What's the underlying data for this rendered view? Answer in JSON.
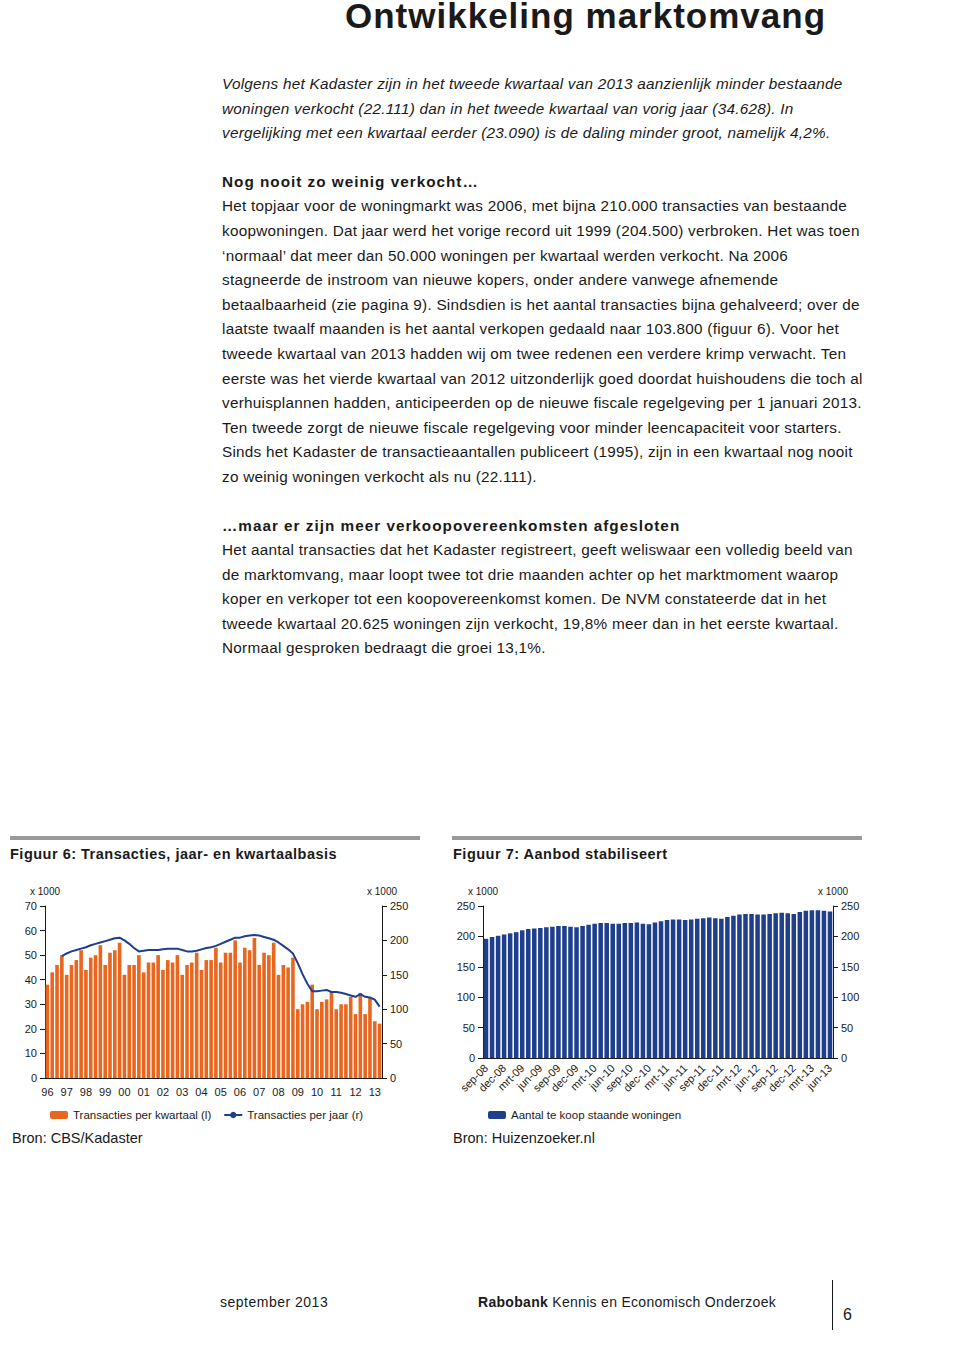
{
  "document": {
    "header": "Ontwikkeling marktomvang",
    "intro": "Volgens het Kadaster zijn in het tweede kwartaal van 2013 aanzienlijk minder bestaande woningen verkocht (22.111) dan in het tweede kwartaal van vorig jaar (34.628). In vergelijking met een kwartaal eerder (23.090) is de daling minder groot, namelijk 4,2%.",
    "sections": [
      {
        "heading": "Nog nooit zo weinig verkocht…",
        "text": "Het topjaar voor de woningmarkt was 2006, met bijna 210.000 transacties van bestaande koopwoningen. Dat jaar werd het vorige record uit 1999 (204.500) verbroken. Het was toen ‘normaal’ dat meer dan 50.000 woningen per kwartaal werden verkocht. Na 2006 stagneerde de instroom van nieuwe kopers, onder andere vanwege afnemende betaalbaarheid (zie pagina 9). Sindsdien is het aantal transacties bijna gehalveerd; over de laatste twaalf maanden is het aantal verkopen gedaald naar 103.800 (figuur 6). Voor het tweede kwartaal van 2013 hadden wij om twee redenen een verdere krimp verwacht. Ten eerste was het vierde kwartaal van 2012 uitzonderlijk goed doordat huishoudens die toch al verhuisplannen hadden, anticipeerden op de nieuwe fiscale regelgeving per 1 januari 2013. Ten tweede zorgt de nieuwe fiscale regelgeving voor minder leencapaciteit voor starters. Sinds het Kadaster de transactieaantallen publiceert (1995), zijn in een kwartaal nog nooit zo weinig woningen verkocht als nu (22.111)."
      },
      {
        "heading": "…maar er zijn meer verkoopovereenkomsten afgesloten",
        "text": "Het aantal transacties dat het Kadaster registreert, geeft weliswaar een volledig beeld van de marktomvang, maar loopt twee tot drie maanden achter op het marktmoment waarop koper en verkoper tot een koopovereenkomst komen. De NVM constateerde dat in het tweede kwartaal 20.625 woningen zijn verkocht, 19,8% meer dan in het eerste kwartaal. Normaal gesproken bedraagt die groei 13,1%."
      }
    ],
    "footer": {
      "date": "september 2013",
      "brand": "Rabobank",
      "department": "Kennis en Economisch Onderzoek",
      "page": "6"
    }
  },
  "chart_data": [
    {
      "type": "bar",
      "title": "Figuur 6: Transacties, jaar- en kwartaalbasis",
      "source": "Bron: CBS/Kadaster",
      "ylabel": "x 1000",
      "y2label": "x 1000",
      "categories": [
        "96",
        null,
        null,
        null,
        "97",
        null,
        null,
        null,
        "98",
        null,
        null,
        null,
        "99",
        null,
        null,
        null,
        "00",
        null,
        null,
        null,
        "01",
        null,
        null,
        null,
        "02",
        null,
        null,
        null,
        "03",
        null,
        null,
        null,
        "04",
        null,
        null,
        null,
        "05",
        null,
        null,
        null,
        "06",
        null,
        null,
        null,
        "07",
        null,
        null,
        null,
        "08",
        null,
        null,
        null,
        "09",
        null,
        null,
        null,
        "10",
        null,
        null,
        null,
        "11",
        null,
        null,
        null,
        "12",
        null,
        null,
        null,
        "13",
        null
      ],
      "ylim": [
        0,
        70
      ],
      "yticks": [
        0,
        10,
        20,
        30,
        40,
        50,
        60,
        70
      ],
      "y2lim": [
        0,
        250
      ],
      "y2ticks": [
        0,
        50,
        100,
        150,
        200,
        250
      ],
      "grid": false,
      "legend": "bottom",
      "series": [
        {
          "name": "Transacties per kwartaal (l)",
          "type": "bar",
          "color": "#e8661e",
          "values": [
            38,
            43,
            46,
            50,
            42,
            46,
            48,
            52,
            44,
            49,
            50,
            54,
            46,
            51,
            52,
            55,
            42,
            46,
            46,
            50,
            43,
            47,
            47,
            50,
            44,
            48,
            47,
            50,
            42,
            46,
            47,
            51,
            44,
            48,
            48,
            53,
            47,
            51,
            51,
            56,
            47,
            53,
            52,
            57,
            46,
            51,
            50,
            55,
            42,
            46,
            45,
            49,
            28,
            30,
            31,
            38,
            28,
            31,
            32,
            35,
            28,
            30,
            30,
            33,
            26,
            34.628,
            26,
            32.6,
            23.09,
            22.111
          ]
        },
        {
          "name": "Transacties per jaar (r)",
          "type": "line",
          "color": "#1f3f8c",
          "axis": "y2",
          "values": [
            null,
            null,
            null,
            177,
            181,
            184,
            186,
            188,
            190,
            193,
            195,
            197,
            199,
            201,
            203,
            204,
            200,
            195,
            189,
            184,
            185,
            186,
            186,
            186,
            187,
            188,
            188,
            188,
            186,
            184,
            184,
            185,
            187,
            189,
            190,
            192,
            195,
            198,
            201,
            204,
            204,
            206,
            207,
            208,
            207,
            205,
            203,
            201,
            197,
            192,
            187,
            181,
            167,
            151,
            137,
            126,
            126,
            127,
            128,
            125,
            125,
            124,
            122,
            120,
            118,
            122,
            118,
            117,
            114,
            103.8
          ]
        }
      ]
    },
    {
      "type": "bar",
      "title": "Figuur 7: Aanbod stabiliseert",
      "source": "Bron: Huizenzoeker.nl",
      "ylabel": "x 1000",
      "y2label": "x 1000",
      "categories": [
        "sep-08",
        null,
        null,
        "dec-08",
        null,
        null,
        "mrt-09",
        null,
        null,
        "jun-09",
        null,
        null,
        "sep-09",
        null,
        null,
        "dec-09",
        null,
        null,
        "mrt-10",
        null,
        null,
        "jun-10",
        null,
        null,
        "sep-10",
        null,
        null,
        "dec-10",
        null,
        null,
        "mrt-11",
        null,
        null,
        "jun-11",
        null,
        null,
        "sep-11",
        null,
        null,
        "dec-11",
        null,
        null,
        "mrt-12",
        null,
        null,
        "jun-12",
        null,
        null,
        "sep-12",
        null,
        null,
        "dec-12",
        null,
        null,
        "mrt-13",
        null,
        null,
        "jun-13"
      ],
      "ylim": [
        0,
        250
      ],
      "yticks": [
        0,
        50,
        100,
        150,
        200,
        250
      ],
      "y2lim": [
        0,
        250
      ],
      "y2ticks": [
        0,
        50,
        100,
        150,
        200,
        250
      ],
      "grid": false,
      "legend": "bottom",
      "series": [
        {
          "name": "Aantal te koop staande woningen",
          "type": "bar",
          "color": "#1f3f8c",
          "values": [
            196,
            199,
            201,
            203,
            205,
            207,
            210,
            212,
            213,
            214,
            215,
            216,
            217,
            217,
            216,
            215,
            217,
            219,
            221,
            222,
            222,
            221,
            221,
            222,
            222,
            223,
            221,
            220,
            223,
            225,
            227,
            228,
            228,
            227,
            228,
            229,
            230,
            231,
            230,
            229,
            232,
            234,
            236,
            237,
            237,
            236,
            236,
            237,
            238,
            239,
            238,
            237,
            240,
            242,
            243,
            243,
            242,
            241
          ]
        }
      ]
    }
  ]
}
